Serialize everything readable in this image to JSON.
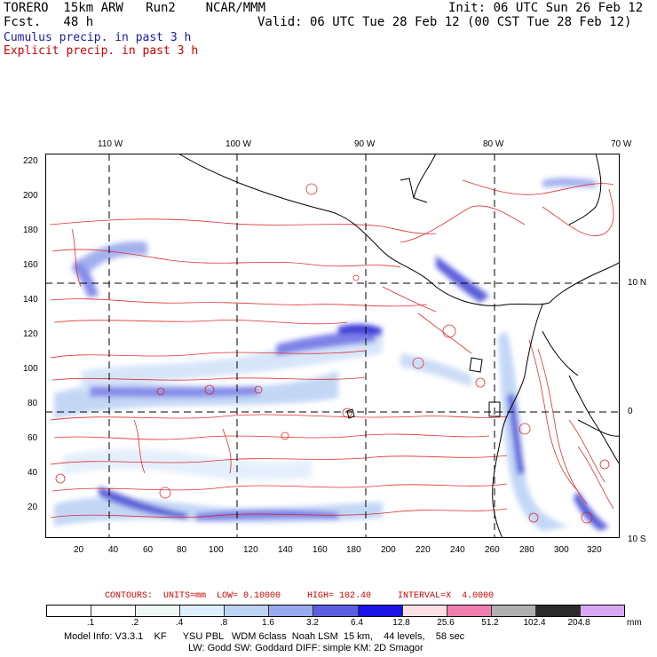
{
  "header": {
    "model": "TORERO  15km ARW   Run2    NCAR/MMM",
    "init": "Init: 06 UTC Sun 26 Feb 12",
    "fcst": "Fcst.   48 h",
    "valid": "Valid: 06 UTC Tue 28 Feb 12 (00 CST Tue 28 Feb 12)",
    "cumulus_label": "Cumulus precip. in past 3 h",
    "explicit_label": "Explicit precip. in past 3 h",
    "cumulus_color": "#1a1aa8",
    "explicit_color": "#cc0000"
  },
  "map": {
    "lon_labels": [
      "110 W",
      "100 W",
      "90 W",
      "80 W",
      "70 W"
    ],
    "lat_labels": [
      "10 N",
      "0",
      "10 S"
    ],
    "y_ticks": [
      "220",
      "200",
      "180",
      "160",
      "140",
      "120",
      "100",
      "80",
      "60",
      "40",
      "20"
    ],
    "x_ticks": [
      "20",
      "40",
      "60",
      "80",
      "100",
      "120",
      "140",
      "160",
      "180",
      "200",
      "220",
      "240",
      "260",
      "280",
      "300",
      "320"
    ]
  },
  "legend": {
    "contours": "CONTOURS:  UNITS=mm  LOW= 0.10000     HIGH= 102.40     INTERVAL=X  4.0000",
    "units": "mm",
    "levels": [
      ".1",
      ".2",
      ".4",
      ".8",
      "1.6",
      "3.2",
      "6.4",
      "12.8",
      "25.6",
      "51.2",
      "102.4",
      "204.8"
    ],
    "colors": [
      "#ffffff",
      "#ffffff",
      "#eef6f6",
      "#dcefff",
      "#bdd3f5",
      "#9aa8ee",
      "#5d5fe0",
      "#1a12e6",
      "#fde0e4",
      "#f07fae",
      "#b0b0b0",
      "#2c2c2c",
      "#d9a8f5"
    ]
  },
  "footer": {
    "line1": "Model Info: V3.3.1    KF      YSU PBL   WDM 6class  Noah LSM  15 km,    44 levels,    58 sec",
    "line2": "LW: Godd SW: Goddard DIFF: simple KM: 2D Smagor"
  }
}
